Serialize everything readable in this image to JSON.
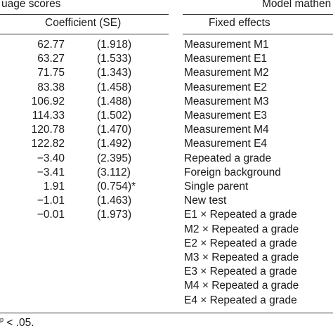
{
  "left_panel": {
    "title": "uage scores",
    "column_header": "Coefficient (SE)",
    "rows": [
      {
        "coef": "62.77",
        "se": "(1.918)"
      },
      {
        "coef": "63.27",
        "se": "(1.533)"
      },
      {
        "coef": "71.75",
        "se": "(1.343)"
      },
      {
        "coef": "83.38",
        "se": "(1.458)"
      },
      {
        "coef": "106.92",
        "se": "(1.488)"
      },
      {
        "coef": "114.33",
        "se": "(1.502)"
      },
      {
        "coef": "120.78",
        "se": "(1.470)"
      },
      {
        "coef": "122.82",
        "se": "(1.492)"
      },
      {
        "coef": "−3.40",
        "se": "(2.395)"
      },
      {
        "coef": "−3.41",
        "se": "(3.112)"
      },
      {
        "coef": "1.91",
        "se": "(0.754)*"
      },
      {
        "coef": "−1.01",
        "se": "(1.463)"
      },
      {
        "coef": "−0.01",
        "se": "(1.973)"
      }
    ]
  },
  "right_panel": {
    "title": "Model mathen",
    "column_header": "Fixed effects",
    "rows": [
      "Measurement M1",
      "Measurement E1",
      "Measurement M2",
      "Measurement E2",
      "Measurement M3",
      "Measurement E3",
      "Measurement M4",
      "Measurement E4",
      "Repeated a grade",
      "Foreign background",
      "Single parent",
      "New test",
      "E1 × Repeated a grade",
      "M2 × Repeated a grade",
      "E2 × Repeated a grade",
      "M3 × Repeated a grade",
      "E3 × Repeated a grade",
      "M4 × Repeated a grade",
      "E4 × Repeated a grade"
    ]
  },
  "footnote": " < .05."
}
